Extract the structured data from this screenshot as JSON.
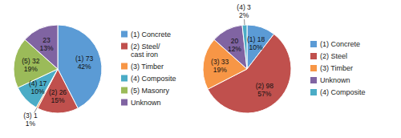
{
  "chart_data": [
    {
      "type": "pie",
      "categories": [
        "(1) Concrete",
        "(2) Steel/\ncast iron",
        "(3) Timber",
        "(4) Composite",
        "(5) Masonry",
        "Unknown"
      ],
      "values": [
        73,
        26,
        1,
        17,
        32,
        23
      ],
      "value_labels": [
        "(1) 73\n42%",
        "(2) 26\n15%",
        "(3) 1\n1%",
        "(4) 17\n10%",
        "(5) 32\n19%",
        "23\n13%"
      ],
      "colors": [
        "#5B9BD5",
        "#C0504D",
        "#F79646",
        "#4BACC6",
        "#9BBB59",
        "#8064A2"
      ],
      "data_labels": true,
      "legend": "right"
    },
    {
      "type": "pie",
      "categories": [
        "(1) Concrete",
        "(2) Steel",
        "(3) Timber",
        "Unknown",
        "(4) Composite"
      ],
      "values": [
        18,
        98,
        33,
        20,
        3
      ],
      "value_labels": [
        "(1) 18\n10%",
        "(2) 98\n57%",
        "(3) 33\n19%",
        "20\n12%",
        "(4) 3\n2%"
      ],
      "colors": [
        "#5B9BD5",
        "#C0504D",
        "#F79646",
        "#8064A2",
        "#4BACC6"
      ],
      "data_labels": true,
      "legend": "right"
    }
  ]
}
